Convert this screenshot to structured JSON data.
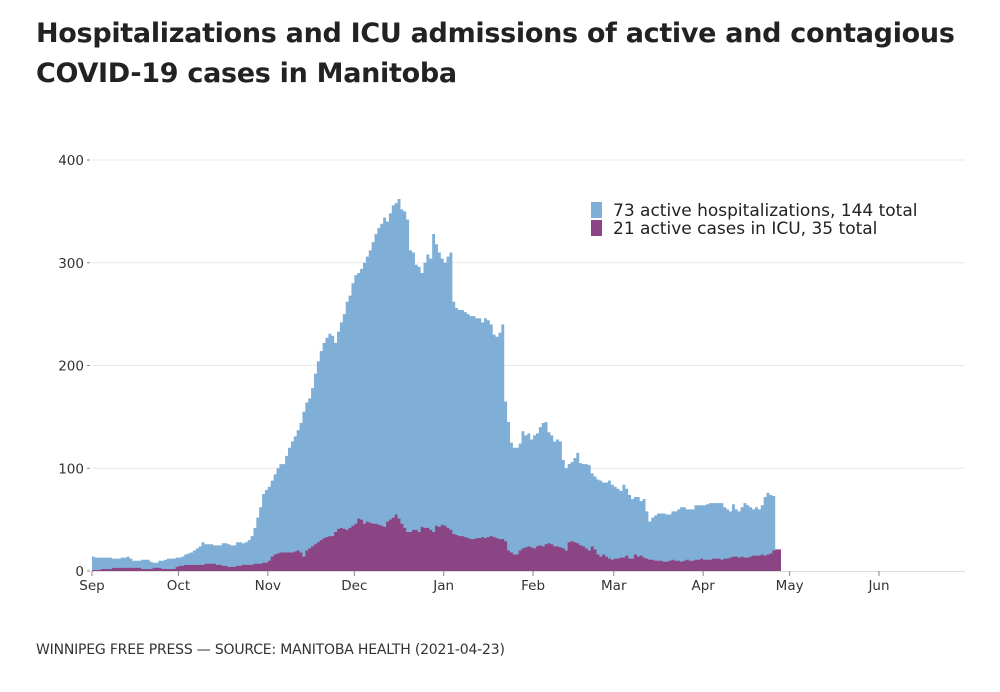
{
  "title": "Hospitalizations and ICU admissions of active and contagious COVID-19 cases in Manitoba",
  "source": "WINNIPEG FREE PRESS — SOURCE: MANITOBA HEALTH (2021-04-23)",
  "colors": {
    "hospitalizations": "#7fafd6",
    "icu": "#8c4584",
    "grid": "#e8e8e8",
    "axis": "#888888"
  },
  "chart_data": {
    "type": "area",
    "title": "Hospitalizations and ICU admissions of active and contagious COVID-19 cases in Manitoba",
    "xlabel": "",
    "ylabel": "",
    "ylim": [
      0,
      400
    ],
    "yticks": [
      0,
      100,
      200,
      300,
      400
    ],
    "ytick_labels": [
      "0",
      "100",
      "200",
      "300",
      "400"
    ],
    "x_start_date": "2020-09-01",
    "x_end_date": "2021-06-30",
    "x_range_days": [
      0,
      302
    ],
    "xticks_days": [
      0,
      30,
      61,
      91,
      122,
      153,
      181,
      212,
      242,
      273
    ],
    "xtick_labels": [
      "Sep",
      "Oct",
      "Nov",
      "Dec",
      "Jan",
      "Feb",
      "Mar",
      "Apr",
      "May",
      "Jun"
    ],
    "grid": true,
    "legend_position": "top-right",
    "legend": [
      {
        "label": "73 active hospitalizations,  144 total",
        "series": "hospitalizations"
      },
      {
        "label": "21 active cases in ICU,  35 total",
        "series": "icu"
      }
    ],
    "series": [
      {
        "name": "Active hospitalizations",
        "key": "hospitalizations",
        "x_days_step": 1,
        "values": [
          14,
          13,
          13,
          13,
          13,
          13,
          13,
          12,
          12,
          12,
          13,
          13,
          14,
          12,
          10,
          10,
          10,
          11,
          11,
          11,
          9,
          8,
          8,
          10,
          10,
          11,
          12,
          12,
          12,
          13,
          13,
          14,
          16,
          17,
          18,
          20,
          22,
          24,
          28,
          26,
          26,
          26,
          25,
          25,
          25,
          27,
          27,
          26,
          25,
          25,
          28,
          28,
          27,
          28,
          30,
          34,
          42,
          52,
          62,
          75,
          79,
          82,
          88,
          94,
          100,
          104,
          104,
          112,
          120,
          126,
          131,
          137,
          144,
          155,
          164,
          168,
          178,
          192,
          204,
          214,
          222,
          227,
          231,
          229,
          222,
          233,
          242,
          250,
          262,
          268,
          280,
          288,
          290,
          294,
          300,
          306,
          312,
          320,
          328,
          334,
          338,
          344,
          340,
          348,
          356,
          358,
          362,
          352,
          350,
          342,
          312,
          310,
          298,
          296,
          290,
          300,
          308,
          304,
          328,
          318,
          310,
          304,
          300,
          306,
          310,
          262,
          256,
          254,
          254,
          252,
          250,
          248,
          248,
          246,
          246,
          242,
          246,
          244,
          240,
          230,
          228,
          232,
          240,
          165,
          145,
          125,
          120,
          120,
          124,
          136,
          132,
          134,
          128,
          132,
          134,
          140,
          144,
          145,
          135,
          132,
          126,
          128,
          126,
          108,
          100,
          104,
          106,
          110,
          115,
          105,
          104,
          104,
          103,
          95,
          92,
          89,
          88,
          86,
          86,
          88,
          84,
          82,
          80,
          78,
          84,
          80,
          74,
          70,
          72,
          72,
          68,
          70,
          58,
          48,
          52,
          54,
          56,
          56,
          56,
          55,
          55,
          58,
          58,
          60,
          62,
          62,
          60,
          60,
          60,
          64,
          64,
          64,
          64,
          65,
          66,
          66,
          66,
          66,
          66,
          62,
          60,
          58,
          65,
          60,
          58,
          62,
          66,
          64,
          62,
          60,
          62,
          60,
          64,
          72,
          76,
          74,
          73
        ]
      },
      {
        "name": "Active cases in ICU",
        "key": "icu",
        "x_days_step": 1,
        "values": [
          1,
          1,
          1,
          2,
          2,
          2,
          2,
          3,
          3,
          3,
          3,
          3,
          3,
          3,
          3,
          3,
          3,
          2,
          2,
          2,
          2,
          3,
          3,
          3,
          2,
          2,
          2,
          2,
          2,
          4,
          5,
          5,
          6,
          6,
          6,
          6,
          6,
          6,
          6,
          7,
          7,
          7,
          7,
          6,
          6,
          5,
          5,
          4,
          4,
          4,
          5,
          5,
          6,
          6,
          6,
          6,
          7,
          7,
          7,
          8,
          8,
          10,
          14,
          16,
          17,
          18,
          18,
          18,
          18,
          18,
          19,
          20,
          18,
          14,
          20,
          22,
          24,
          26,
          28,
          30,
          32,
          33,
          34,
          34,
          38,
          41,
          42,
          41,
          40,
          42,
          44,
          46,
          51,
          50,
          46,
          48,
          47,
          46,
          46,
          45,
          44,
          43,
          48,
          50,
          52,
          55,
          51,
          46,
          42,
          38,
          38,
          40,
          40,
          38,
          43,
          42,
          42,
          40,
          38,
          44,
          43,
          45,
          44,
          42,
          40,
          36,
          35,
          34,
          34,
          33,
          32,
          31,
          31,
          32,
          32,
          33,
          32,
          33,
          34,
          33,
          32,
          31,
          31,
          29,
          20,
          18,
          16,
          16,
          20,
          22,
          23,
          24,
          23,
          22,
          24,
          25,
          24,
          26,
          27,
          26,
          24,
          24,
          23,
          22,
          20,
          28,
          29,
          28,
          27,
          25,
          24,
          22,
          20,
          24,
          21,
          16,
          14,
          16,
          14,
          12,
          11,
          12,
          12,
          13,
          13,
          15,
          12,
          12,
          16,
          14,
          15,
          13,
          12,
          11,
          11,
          10,
          10,
          10,
          9,
          9,
          10,
          11,
          10,
          10,
          9,
          10,
          11,
          10,
          10,
          11,
          11,
          12,
          11,
          11,
          11,
          12,
          12,
          12,
          11,
          12,
          12,
          13,
          14,
          14,
          13,
          14,
          13,
          13,
          14,
          15,
          15,
          15,
          16,
          15,
          16,
          17,
          20,
          21,
          21
        ]
      }
    ]
  }
}
